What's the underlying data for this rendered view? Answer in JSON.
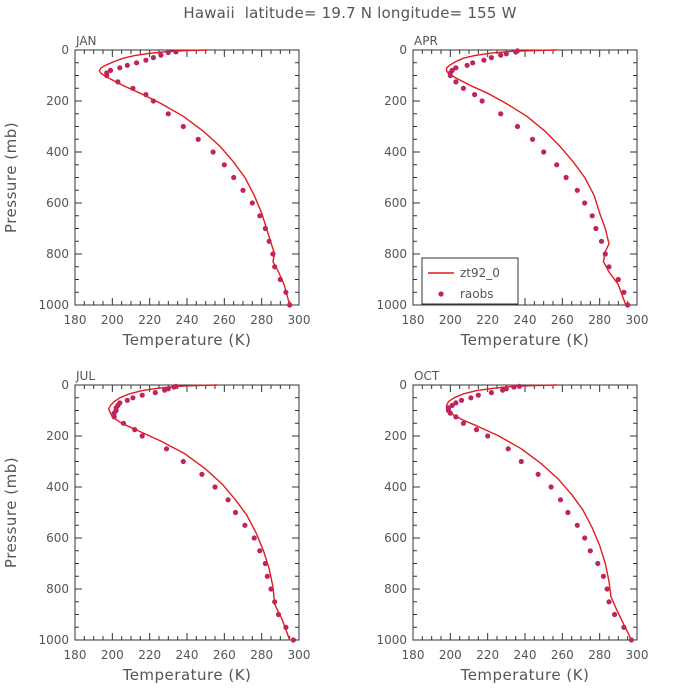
{
  "figure": {
    "title": "Hawaii  latitude= 19.7 N longitude= 155 W"
  },
  "colors": {
    "model_line": "#e41a1c",
    "obs_marker": "#c0245c",
    "axis": "#333333",
    "text": "#555555"
  },
  "chart_data": [
    {
      "type": "line",
      "panel_label": "JAN",
      "xlabel": "Temperature (K)",
      "ylabel": "Pressure (mb)",
      "xlim": [
        180,
        300
      ],
      "ylim": [
        1000,
        0
      ],
      "xticks": [
        180,
        200,
        220,
        240,
        260,
        280,
        300
      ],
      "yticks": [
        0,
        200,
        400,
        600,
        800,
        1000
      ],
      "legend": null,
      "series": [
        {
          "name": "zt92_0",
          "kind": "line",
          "points": [
            [
              251,
              0
            ],
            [
              240,
              2
            ],
            [
              230,
              6
            ],
            [
              220,
              13
            ],
            [
              212,
              22
            ],
            [
              206,
              32
            ],
            [
              201,
              45
            ],
            [
              197,
              58
            ],
            [
              194,
              70
            ],
            [
              193,
              82
            ],
            [
              194,
              92
            ],
            [
              198,
              110
            ],
            [
              206,
              140
            ],
            [
              215,
              170
            ],
            [
              226,
              210
            ],
            [
              238,
              260
            ],
            [
              249,
              320
            ],
            [
              258,
              380
            ],
            [
              265,
              440
            ],
            [
              271,
              500
            ],
            [
              276,
              570
            ],
            [
              280,
              640
            ],
            [
              283,
              710
            ],
            [
              286,
              780
            ],
            [
              287,
              800
            ],
            [
              286,
              830
            ],
            [
              289,
              870
            ],
            [
              292,
              920
            ],
            [
              295,
              1000
            ]
          ]
        },
        {
          "name": "raobs",
          "kind": "scatter",
          "points": [
            [
              234,
              7
            ],
            [
              230,
              10
            ],
            [
              226,
              20
            ],
            [
              222,
              30
            ],
            [
              218,
              40
            ],
            [
              213,
              50
            ],
            [
              208,
              60
            ],
            [
              204,
              70
            ],
            [
              199,
              80
            ],
            [
              197,
              90
            ],
            [
              197,
              100
            ],
            [
              203,
              125
            ],
            [
              211,
              150
            ],
            [
              218,
              175
            ],
            [
              222,
              200
            ],
            [
              230,
              250
            ],
            [
              238,
              300
            ],
            [
              246,
              350
            ],
            [
              254,
              400
            ],
            [
              260,
              450
            ],
            [
              265,
              500
            ],
            [
              270,
              550
            ],
            [
              275,
              600
            ],
            [
              279,
              650
            ],
            [
              282,
              700
            ],
            [
              284,
              750
            ],
            [
              286,
              800
            ],
            [
              287,
              850
            ],
            [
              290,
              900
            ],
            [
              293,
              950
            ],
            [
              295,
              1000
            ]
          ]
        }
      ]
    },
    {
      "type": "line",
      "panel_label": "APR",
      "xlabel": "Temperature (K)",
      "ylabel": "",
      "xlim": [
        180,
        300
      ],
      "ylim": [
        1000,
        0
      ],
      "xticks": [
        180,
        200,
        220,
        240,
        260,
        280,
        300
      ],
      "yticks": [
        0,
        200,
        400,
        600,
        800,
        1000
      ],
      "legend": {
        "position": "lower-left",
        "entries": [
          {
            "label": "zt92_0",
            "kind": "line"
          },
          {
            "label": "raobs",
            "kind": "marker"
          }
        ]
      },
      "series": [
        {
          "name": "zt92_0",
          "kind": "line",
          "points": [
            [
              257,
              0
            ],
            [
              245,
              2
            ],
            [
              233,
              5
            ],
            [
              222,
              12
            ],
            [
              213,
              22
            ],
            [
              207,
              32
            ],
            [
              203,
              45
            ],
            [
              200,
              58
            ],
            [
              198,
              70
            ],
            [
              198,
              82
            ],
            [
              199,
              92
            ],
            [
              203,
              110
            ],
            [
              211,
              140
            ],
            [
              220,
              170
            ],
            [
              230,
              210
            ],
            [
              241,
              260
            ],
            [
              251,
              320
            ],
            [
              259,
              380
            ],
            [
              266,
              440
            ],
            [
              272,
              500
            ],
            [
              277,
              570
            ],
            [
              280,
              640
            ],
            [
              283,
              700
            ],
            [
              285,
              760
            ],
            [
              283,
              790
            ],
            [
              282,
              830
            ],
            [
              285,
              870
            ],
            [
              290,
              920
            ],
            [
              294,
              1000
            ]
          ]
        },
        {
          "name": "raobs",
          "kind": "scatter",
          "points": [
            [
              236,
              3
            ],
            [
              235,
              8
            ],
            [
              230,
              15
            ],
            [
              227,
              20
            ],
            [
              222,
              30
            ],
            [
              218,
              40
            ],
            [
              212,
              50
            ],
            [
              209,
              60
            ],
            [
              203,
              70
            ],
            [
              201,
              80
            ],
            [
              200,
              90
            ],
            [
              200,
              100
            ],
            [
              203,
              125
            ],
            [
              207,
              150
            ],
            [
              213,
              175
            ],
            [
              217,
              200
            ],
            [
              227,
              250
            ],
            [
              236,
              300
            ],
            [
              244,
              350
            ],
            [
              250,
              400
            ],
            [
              257,
              450
            ],
            [
              262,
              500
            ],
            [
              268,
              550
            ],
            [
              272,
              600
            ],
            [
              276,
              650
            ],
            [
              278,
              700
            ],
            [
              281,
              750
            ],
            [
              283,
              800
            ],
            [
              285,
              850
            ],
            [
              290,
              900
            ],
            [
              293,
              950
            ],
            [
              295,
              1000
            ]
          ]
        }
      ]
    },
    {
      "type": "line",
      "panel_label": "JUL",
      "xlabel": "Temperature (K)",
      "ylabel": "Pressure (mb)",
      "xlim": [
        180,
        300
      ],
      "ylim": [
        1000,
        0
      ],
      "xticks": [
        180,
        200,
        220,
        240,
        260,
        280,
        300
      ],
      "yticks": [
        0,
        200,
        400,
        600,
        800,
        1000
      ],
      "legend": null,
      "series": [
        {
          "name": "zt92_0",
          "kind": "line",
          "points": [
            [
              256,
              0
            ],
            [
              245,
              2
            ],
            [
              235,
              5
            ],
            [
              225,
              12
            ],
            [
              216,
              22
            ],
            [
              209,
              35
            ],
            [
              204,
              50
            ],
            [
              201,
              65
            ],
            [
              199,
              80
            ],
            [
              198,
              95
            ],
            [
              199,
              110
            ],
            [
              200,
              125
            ],
            [
              205,
              150
            ],
            [
              214,
              180
            ],
            [
              226,
              220
            ],
            [
              239,
              270
            ],
            [
              250,
              330
            ],
            [
              259,
              390
            ],
            [
              266,
              450
            ],
            [
              272,
              510
            ],
            [
              277,
              580
            ],
            [
              281,
              650
            ],
            [
              284,
              720
            ],
            [
              286,
              790
            ],
            [
              287,
              860
            ],
            [
              291,
              920
            ],
            [
              295,
              1000
            ]
          ]
        },
        {
          "name": "raobs",
          "kind": "scatter",
          "points": [
            [
              234,
              5
            ],
            [
              233,
              8
            ],
            [
              230,
              15
            ],
            [
              228,
              20
            ],
            [
              223,
              30
            ],
            [
              216,
              40
            ],
            [
              211,
              50
            ],
            [
              208,
              60
            ],
            [
              204,
              70
            ],
            [
              203,
              80
            ],
            [
              202,
              90
            ],
            [
              202,
              100
            ],
            [
              201,
              110
            ],
            [
              201,
              125
            ],
            [
              206,
              150
            ],
            [
              212,
              175
            ],
            [
              216,
              200
            ],
            [
              229,
              250
            ],
            [
              238,
              300
            ],
            [
              248,
              350
            ],
            [
              255,
              400
            ],
            [
              262,
              450
            ],
            [
              266,
              500
            ],
            [
              271,
              550
            ],
            [
              276,
              600
            ],
            [
              279,
              650
            ],
            [
              282,
              700
            ],
            [
              283,
              750
            ],
            [
              285,
              800
            ],
            [
              287,
              850
            ],
            [
              289,
              900
            ],
            [
              293,
              950
            ],
            [
              297,
              1000
            ]
          ]
        }
      ]
    },
    {
      "type": "line",
      "panel_label": "OCT",
      "xlabel": "Temperature (K)",
      "ylabel": "",
      "xlim": [
        180,
        300
      ],
      "ylim": [
        1000,
        0
      ],
      "xticks": [
        180,
        200,
        220,
        240,
        260,
        280,
        300
      ],
      "yticks": [
        0,
        200,
        400,
        600,
        800,
        1000
      ],
      "legend": null,
      "series": [
        {
          "name": "zt92_0",
          "kind": "line",
          "points": [
            [
              257,
              0
            ],
            [
              246,
              2
            ],
            [
              234,
              5
            ],
            [
              224,
              12
            ],
            [
              214,
              22
            ],
            [
              207,
              35
            ],
            [
              202,
              50
            ],
            [
              199,
              65
            ],
            [
              198,
              80
            ],
            [
              198,
              95
            ],
            [
              200,
              110
            ],
            [
              206,
              135
            ],
            [
              214,
              160
            ],
            [
              226,
              200
            ],
            [
              238,
              250
            ],
            [
              249,
              310
            ],
            [
              258,
              370
            ],
            [
              265,
              430
            ],
            [
              271,
              490
            ],
            [
              276,
              560
            ],
            [
              280,
              630
            ],
            [
              283,
              700
            ],
            [
              285,
              770
            ],
            [
              286,
              830
            ],
            [
              289,
              880
            ],
            [
              293,
              940
            ],
            [
              297,
              1000
            ]
          ]
        },
        {
          "name": "raobs",
          "kind": "scatter",
          "points": [
            [
              237,
              5
            ],
            [
              234,
              8
            ],
            [
              230,
              15
            ],
            [
              228,
              20
            ],
            [
              222,
              30
            ],
            [
              215,
              40
            ],
            [
              211,
              50
            ],
            [
              206,
              60
            ],
            [
              203,
              70
            ],
            [
              201,
              80
            ],
            [
              199,
              90
            ],
            [
              199,
              100
            ],
            [
              200,
              110
            ],
            [
              203,
              125
            ],
            [
              207,
              150
            ],
            [
              214,
              175
            ],
            [
              220,
              200
            ],
            [
              231,
              250
            ],
            [
              238,
              300
            ],
            [
              247,
              350
            ],
            [
              254,
              400
            ],
            [
              259,
              450
            ],
            [
              263,
              500
            ],
            [
              268,
              550
            ],
            [
              272,
              600
            ],
            [
              275,
              650
            ],
            [
              279,
              700
            ],
            [
              282,
              750
            ],
            [
              284,
              800
            ],
            [
              285,
              850
            ],
            [
              288,
              900
            ],
            [
              293,
              950
            ],
            [
              297,
              1000
            ]
          ]
        }
      ]
    }
  ]
}
